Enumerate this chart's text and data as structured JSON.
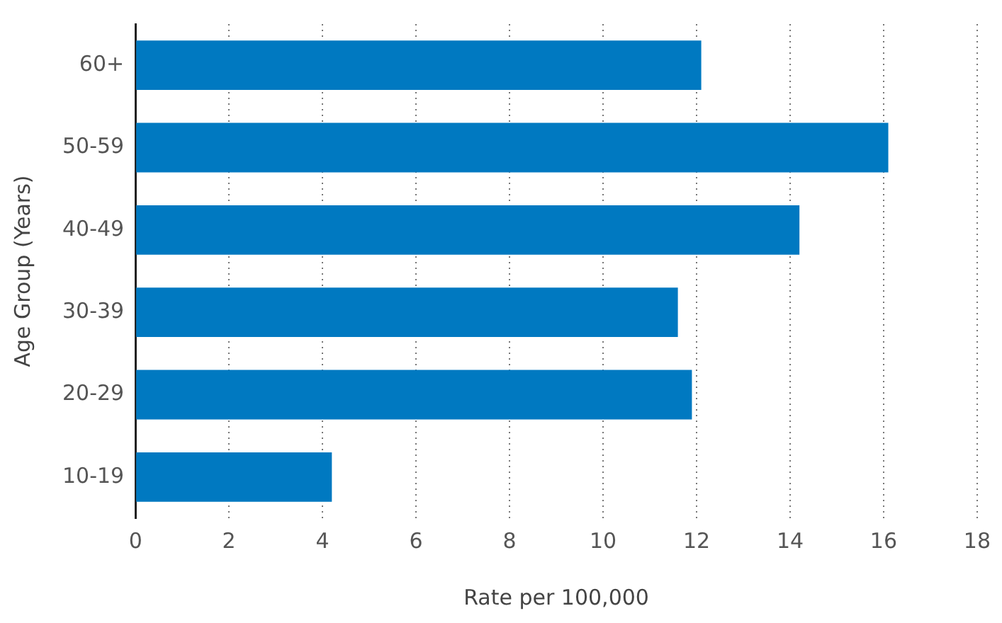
{
  "chart_data": {
    "type": "bar",
    "orientation": "horizontal",
    "xlabel": "Rate per 100,000",
    "ylabel": "Age Group (Years)",
    "categories": [
      "60+",
      "50-59",
      "40-49",
      "30-39",
      "20-29",
      "10-19"
    ],
    "values": [
      12.1,
      16.1,
      14.2,
      11.6,
      11.9,
      4.2
    ],
    "color": "#0079c1",
    "xlim": [
      0,
      18
    ],
    "xticks": [
      0,
      2,
      4,
      6,
      8,
      10,
      12,
      14,
      16,
      18
    ],
    "grid": "x",
    "legend": false
  }
}
